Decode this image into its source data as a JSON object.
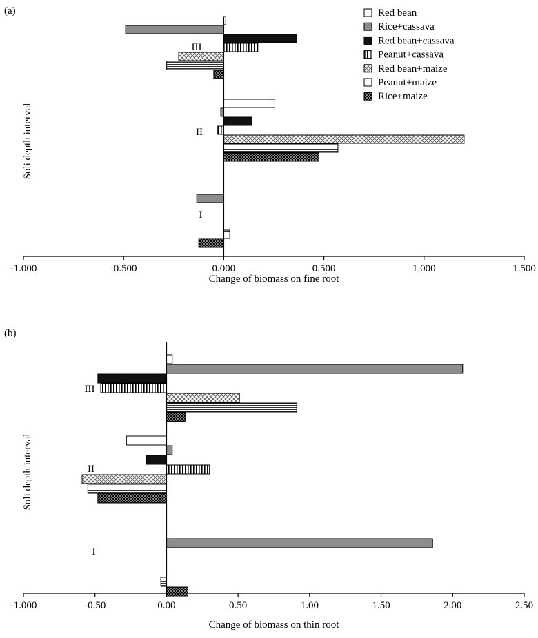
{
  "legend": [
    {
      "name": "Red bean",
      "pattern": "white"
    },
    {
      "name": "Rice+cassava",
      "pattern": "gray"
    },
    {
      "name": "Red bean+cassava",
      "pattern": "black"
    },
    {
      "name": "Peanut+cassava",
      "pattern": "vstripe"
    },
    {
      "name": "Red bean+maize",
      "pattern": "xlight"
    },
    {
      "name": "Peanut+maize",
      "pattern": "hstripe"
    },
    {
      "name": "Rice+maize",
      "pattern": "xdark"
    }
  ],
  "chart_data": [
    {
      "type": "bar",
      "orientation": "horizontal",
      "panel_label": "(a)",
      "xlabel": "Change of biomass on fine root",
      "ylabel": "Soli depth interval",
      "xlim": [
        -1.0,
        1.5
      ],
      "xticks": [
        -1.0,
        -0.5,
        0.0,
        0.5,
        1.0,
        1.5
      ],
      "xtick_labels": [
        "-1.000",
        "-0.500",
        "0.000",
        "0.500",
        "1.000",
        "1.500"
      ],
      "categories": [
        "III",
        "II",
        "I"
      ],
      "series": [
        {
          "name": "Red bean",
          "values": [
            0.01,
            0.255,
            0.0
          ]
        },
        {
          "name": "Rice+cassava",
          "values": [
            -0.49,
            -0.015,
            -0.135
          ]
        },
        {
          "name": "Red bean+cassava",
          "values": [
            0.365,
            0.14,
            0.0
          ]
        },
        {
          "name": "Peanut+cassava",
          "values": [
            0.17,
            -0.03,
            0.0
          ]
        },
        {
          "name": "Red bean+maize",
          "values": [
            -0.225,
            1.2,
            0.0
          ]
        },
        {
          "name": "Peanut+maize",
          "values": [
            -0.285,
            0.57,
            0.03
          ]
        },
        {
          "name": "Rice+maize",
          "values": [
            -0.05,
            0.475,
            -0.125
          ]
        }
      ]
    },
    {
      "type": "bar",
      "orientation": "horizontal",
      "panel_label": "(b)",
      "xlabel": "Change of biomass on thin root",
      "ylabel": "Soli depth interval",
      "xlim": [
        -1.0,
        2.5
      ],
      "xticks": [
        -1.0,
        -0.5,
        0.0,
        0.5,
        1.0,
        1.5,
        2.0,
        2.5
      ],
      "xtick_labels": [
        "-1.000",
        "-0.50",
        "0.00",
        "0.50",
        "1.00",
        "1.50",
        "2.00",
        "2.50"
      ],
      "categories": [
        "III",
        "II",
        "I"
      ],
      "series": [
        {
          "name": "Red bean",
          "values": [
            0.04,
            -0.28,
            0.0
          ]
        },
        {
          "name": "Rice+cassava",
          "values": [
            2.07,
            0.04,
            1.86
          ]
        },
        {
          "name": "Red bean+cassava",
          "values": [
            -0.48,
            -0.14,
            0.0
          ]
        },
        {
          "name": "Peanut+cassava",
          "values": [
            -0.46,
            0.3,
            0.0
          ]
        },
        {
          "name": "Red bean+maize",
          "values": [
            0.51,
            -0.59,
            0.0
          ]
        },
        {
          "name": "Peanut+maize",
          "values": [
            0.91,
            -0.55,
            -0.04
          ]
        },
        {
          "name": "Rice+maize",
          "values": [
            0.13,
            -0.48,
            0.15
          ]
        }
      ]
    }
  ]
}
